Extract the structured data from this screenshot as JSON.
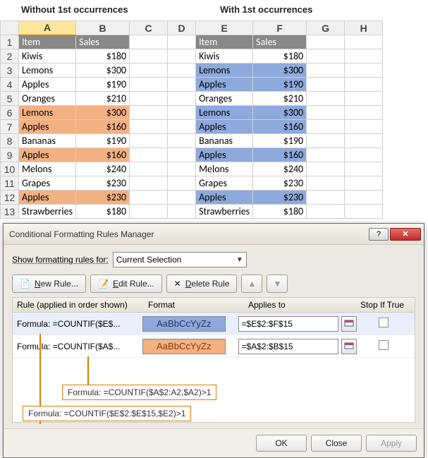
{
  "labels": {
    "left": "Without 1st occurrences",
    "right": "With 1st occurrences"
  },
  "columns": [
    "",
    "A",
    "B",
    "C",
    "D",
    "E",
    "F",
    "G",
    "H"
  ],
  "headerRow": {
    "item": "Item",
    "sales": "Sales"
  },
  "rows": [
    {
      "n": "2",
      "la": "Kiwis",
      "lb": "$180",
      "ra": "Kiwis",
      "rb": "$180",
      "lo": false,
      "rb_b": false
    },
    {
      "n": "3",
      "la": "Lemons",
      "lb": "$300",
      "ra": "Lemons",
      "rb": "$300",
      "lo": false,
      "rb_b": true
    },
    {
      "n": "4",
      "la": "Apples",
      "lb": "$190",
      "ra": "Apples",
      "rb": "$190",
      "lo": false,
      "rb_b": true
    },
    {
      "n": "5",
      "la": "Oranges",
      "lb": "$210",
      "ra": "Oranges",
      "rb": "$210",
      "lo": false,
      "rb_b": false
    },
    {
      "n": "6",
      "la": "Lemons",
      "lb": "$300",
      "ra": "Lemons",
      "rb": "$300",
      "lo": true,
      "rb_b": true
    },
    {
      "n": "7",
      "la": "Apples",
      "lb": "$160",
      "ra": "Apples",
      "rb": "$160",
      "lo": true,
      "rb_b": true
    },
    {
      "n": "8",
      "la": "Bananas",
      "lb": "$190",
      "ra": "Bananas",
      "rb": "$190",
      "lo": false,
      "rb_b": false
    },
    {
      "n": "9",
      "la": "Apples",
      "lb": "$160",
      "ra": "Apples",
      "rb": "$160",
      "lo": true,
      "rb_b": true
    },
    {
      "n": "10",
      "la": "Melons",
      "lb": "$240",
      "ra": "Melons",
      "rb": "$240",
      "lo": false,
      "rb_b": false
    },
    {
      "n": "11",
      "la": "Grapes",
      "lb": "$230",
      "ra": "Grapes",
      "rb": "$230",
      "lo": false,
      "rb_b": false
    },
    {
      "n": "12",
      "la": "Apples",
      "lb": "$230",
      "ra": "Apples",
      "rb": "$230",
      "lo": true,
      "rb_b": true
    },
    {
      "n": "13",
      "la": "Strawberries",
      "lb": "$180",
      "ra": "Strawberries",
      "rb": "$180",
      "lo": false,
      "rb_b": false
    }
  ],
  "dialog": {
    "title": "Conditional Formatting Rules Manager",
    "helpGlyph": "?",
    "closeGlyph": "✕",
    "showLabel": "Show formatting rules for:",
    "scope": "Current Selection",
    "buttons": {
      "new": "New Rule...",
      "edit": "Edit Rule...",
      "delete": "Delete Rule",
      "up": "▲",
      "down": "▼"
    },
    "headers": {
      "rule": "Rule (applied in order shown)",
      "format": "Format",
      "applies": "Applies to",
      "stop": "Stop If True"
    },
    "rules": [
      {
        "formula": "Formula: =COUNTIF($E$...",
        "swatch": "AaBbCcYyZz",
        "swatchClass": "sw-b",
        "applies": "=$E$2:$F$15",
        "sel": true
      },
      {
        "formula": "Formula: =COUNTIF($A$...",
        "swatch": "AaBbCcYyZz",
        "swatchClass": "sw-o",
        "applies": "=$A$2:$B$15",
        "sel": false
      }
    ],
    "footer": {
      "ok": "OK",
      "close": "Close",
      "apply": "Apply"
    }
  },
  "callouts": {
    "c1": "Formula: =COUNTIF($A$2:A2,$A2)>1",
    "c2": "Formula: =COUNTIF($E$2:$E$15,$E2)>1"
  },
  "colors": {
    "highlightOrange": "#f4b183",
    "highlightBlue": "#8ea9db",
    "headerGray": "#888888",
    "calloutBorder": "#e07c00"
  }
}
